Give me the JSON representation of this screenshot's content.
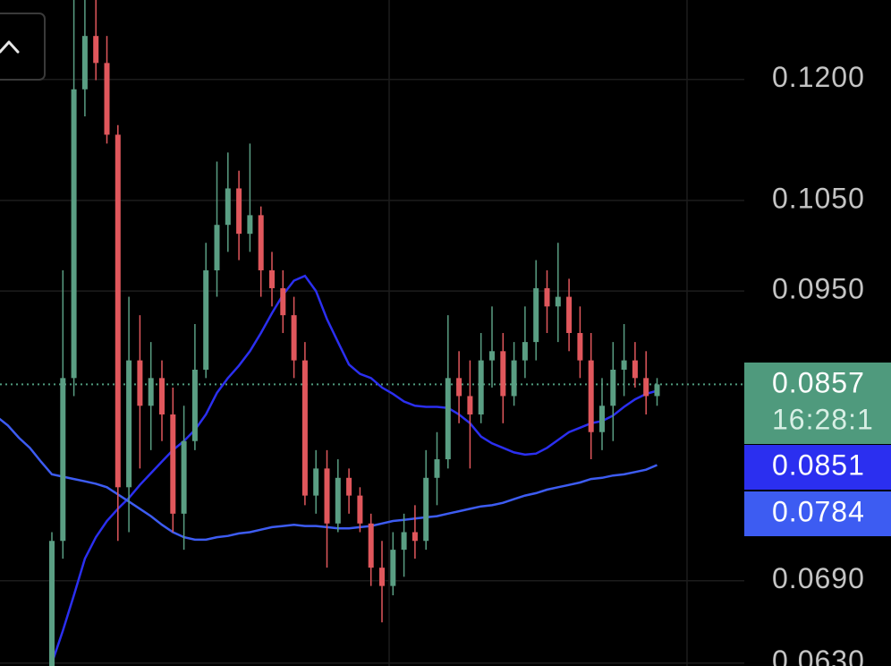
{
  "chart_data": {
    "type": "candlestick",
    "log_scale": true,
    "grid": true,
    "ylim": [
      0.0628,
      0.131
    ],
    "yticks": [
      {
        "value": 0.12,
        "label": "0.1200"
      },
      {
        "value": 0.105,
        "label": "0.1050"
      },
      {
        "value": 0.095,
        "label": "0.0950"
      },
      {
        "value": 0.069,
        "label": "0.0690"
      },
      {
        "value": 0.063,
        "label": "0.0630"
      }
    ],
    "up_color": "#5a9e83",
    "down_color": "#e0575c",
    "open": [
      null,
      null,
      null,
      null,
      null,
      0.0628,
      0.0721,
      0.0863,
      0.1187,
      0.1259,
      0.1222,
      0.1129,
      0.0765,
      0.088,
      0.0837,
      0.0863,
      0.0829,
      0.0743,
      0.0805,
      0.0871,
      0.0972,
      0.1022,
      0.1064,
      0.1012,
      0.1033,
      0.0972,
      0.0953,
      0.0925,
      0.088,
      0.0758,
      0.0781,
      0.0735,
      0.0773,
      0.0758,
      0.0735,
      0.07,
      0.0686,
      0.0714,
      0.0728,
      0.0721,
      0.0773,
      0.0789,
      0.0863,
      0.0846,
      0.0829,
      0.088,
      0.0889,
      0.0846,
      0.088,
      0.0898,
      0.0953,
      0.0934,
      0.0944,
      0.0907,
      0.088,
      0.0813,
      0.0837,
      0.0871,
      0.088,
      0.0863,
      0.0846
    ],
    "high": [
      null,
      null,
      null,
      null,
      null,
      0.0728,
      0.0972,
      0.131,
      0.131,
      0.131,
      0.1259,
      0.1141,
      0.0944,
      0.0925,
      0.0898,
      0.088,
      0.0854,
      0.0837,
      0.0916,
      0.1002,
      0.1096,
      0.1107,
      0.1085,
      0.1118,
      0.1043,
      0.0992,
      0.0972,
      0.0944,
      0.0898,
      0.0797,
      0.0797,
      0.0789,
      0.0781,
      0.0765,
      0.0743,
      0.0721,
      0.0728,
      0.0743,
      0.075,
      0.0797,
      0.0813,
      0.0925,
      0.0889,
      0.088,
      0.0907,
      0.0934,
      0.0907,
      0.0898,
      0.0934,
      0.0983,
      0.0972,
      0.1002,
      0.0963,
      0.0934,
      0.0907,
      0.0863,
      0.0898,
      0.0916,
      0.0898,
      0.0889,
      0.0863
    ],
    "low": [
      null,
      null,
      null,
      null,
      null,
      0.0628,
      0.0707,
      0.0846,
      0.1152,
      0.1199,
      0.1118,
      0.0721,
      0.0728,
      0.0781,
      0.0797,
      0.0805,
      0.0728,
      0.0714,
      0.0797,
      0.0863,
      0.0944,
      0.0992,
      0.0983,
      0.0992,
      0.0944,
      0.0934,
      0.0907,
      0.0863,
      0.075,
      0.0743,
      0.07,
      0.0728,
      0.0743,
      0.0728,
      0.0686,
      0.0659,
      0.0679,
      0.0693,
      0.0707,
      0.0714,
      0.075,
      0.0781,
      0.0821,
      0.0781,
      0.0821,
      0.0854,
      0.0821,
      0.0837,
      0.0863,
      0.088,
      0.0907,
      0.0898,
      0.0889,
      0.0863,
      0.0789,
      0.0797,
      0.0805,
      0.0846,
      0.0854,
      0.0829,
      0.0837
    ],
    "close": [
      null,
      null,
      null,
      null,
      null,
      0.0721,
      0.0863,
      0.1187,
      0.1259,
      0.1222,
      0.1129,
      0.0765,
      0.088,
      0.0837,
      0.0863,
      0.0829,
      0.0743,
      0.0805,
      0.0871,
      0.0972,
      0.1022,
      0.1064,
      0.1012,
      0.1033,
      0.0972,
      0.0953,
      0.0925,
      0.088,
      0.0758,
      0.0781,
      0.0735,
      0.0773,
      0.0758,
      0.0735,
      0.07,
      0.0686,
      0.0714,
      0.0728,
      0.0721,
      0.0773,
      0.0789,
      0.0863,
      0.0846,
      0.0829,
      0.088,
      0.0889,
      0.0846,
      0.088,
      0.0898,
      0.0953,
      0.0934,
      0.0944,
      0.0907,
      0.088,
      0.0813,
      0.0837,
      0.0871,
      0.088,
      0.0863,
      0.0846,
      0.0857
    ],
    "last_price_color": "#4f9a7d",
    "countdown": "16:28:1",
    "moving_averages": [
      {
        "color": "#2b2ff0",
        "values": [
          null,
          null,
          null,
          null,
          null,
          0.063,
          0.0653,
          0.0679,
          0.0707,
          0.0724,
          0.0737,
          0.0747,
          0.0756,
          0.0767,
          0.0777,
          0.0787,
          0.0797,
          0.0805,
          0.0815,
          0.0829,
          0.0849,
          0.0863,
          0.0875,
          0.0889,
          0.0907,
          0.0927,
          0.0946,
          0.0961,
          0.0966,
          0.095,
          0.0921,
          0.0898,
          0.0876,
          0.0867,
          0.0863,
          0.0854,
          0.0848,
          0.0841,
          0.0837,
          0.0836,
          0.0836,
          0.0835,
          0.0829,
          0.0821,
          0.0809,
          0.0803,
          0.0799,
          0.0795,
          0.0793,
          0.0794,
          0.0799,
          0.0806,
          0.0813,
          0.0817,
          0.0821,
          0.0823,
          0.0828,
          0.0836,
          0.0843,
          0.0848,
          0.0851
        ]
      },
      {
        "color": "#3d5cf2",
        "values": [
          0.0827,
          0.0819,
          0.0808,
          0.0799,
          0.0787,
          0.0776,
          0.0774,
          0.0772,
          0.077,
          0.0768,
          0.0765,
          0.0759,
          0.0753,
          0.0747,
          0.0741,
          0.0734,
          0.0728,
          0.0724,
          0.0722,
          0.0722,
          0.0724,
          0.0725,
          0.0727,
          0.0728,
          0.073,
          0.0732,
          0.0733,
          0.0734,
          0.0733,
          0.0733,
          0.0732,
          0.0731,
          0.0731,
          0.0732,
          0.0733,
          0.0735,
          0.0737,
          0.0738,
          0.0739,
          0.074,
          0.0741,
          0.0743,
          0.0745,
          0.0747,
          0.0749,
          0.075,
          0.0752,
          0.0755,
          0.0758,
          0.076,
          0.0763,
          0.0765,
          0.0767,
          0.0769,
          0.0772,
          0.0773,
          0.0775,
          0.0776,
          0.0778,
          0.078,
          0.0784
        ]
      }
    ]
  }
}
